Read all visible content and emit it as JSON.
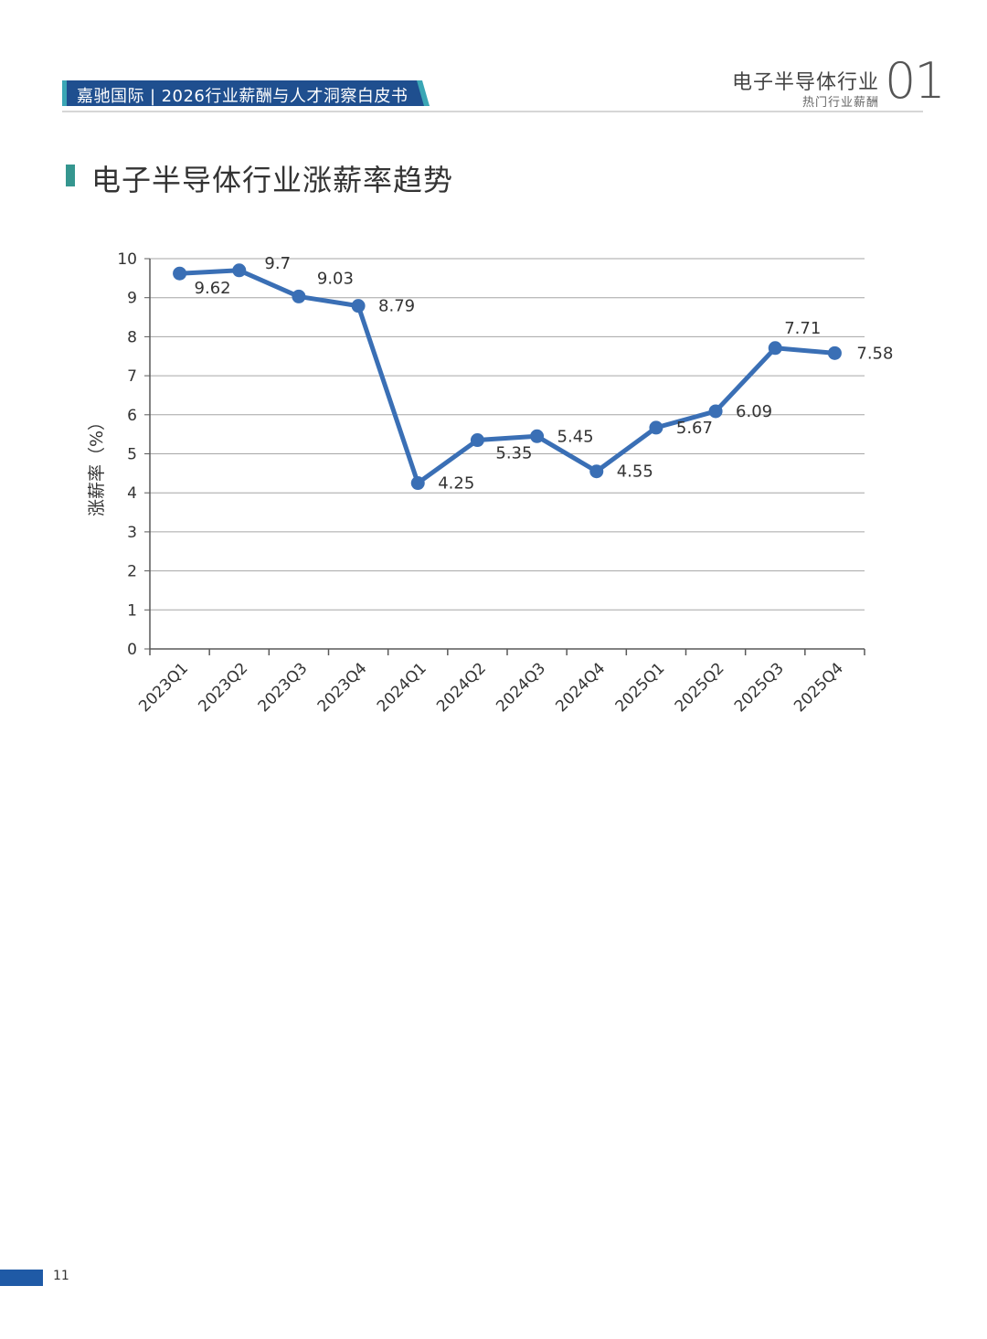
{
  "header": {
    "brand": "嘉驰国际",
    "report": "2026行业薪酬与人才洞察白皮书",
    "section_title": "电子半导体行业",
    "section_subtitle": "热门行业薪酬",
    "section_number": "01"
  },
  "page": {
    "heading": "电子半导体行业涨薪率趋势",
    "page_number": "11"
  },
  "colors": {
    "line": "#3a6fb5",
    "banner": "#1f4f8f",
    "banner_accent": "#3aa6b5",
    "section_bar": "#35968f"
  },
  "chart_data": {
    "type": "line",
    "title": "",
    "xlabel": "",
    "ylabel": "涨薪率（%）",
    "ylim": [
      0,
      10
    ],
    "yticks": [
      0,
      1,
      2,
      3,
      4,
      5,
      6,
      7,
      8,
      9,
      10
    ],
    "grid": true,
    "categories": [
      "2023Q1",
      "2023Q2",
      "2023Q3",
      "2023Q4",
      "2024Q1",
      "2024Q2",
      "2024Q3",
      "2024Q4",
      "2025Q1",
      "2025Q2",
      "2025Q3",
      "2025Q4"
    ],
    "series": [
      {
        "name": "涨薪率",
        "values": [
          9.62,
          9.7,
          9.03,
          8.79,
          4.25,
          5.35,
          5.45,
          4.55,
          5.67,
          6.09,
          7.71,
          7.58
        ],
        "labels": [
          "9.62",
          "9.7",
          "9.03",
          "8.79",
          "4.25",
          "5.35",
          "5.45",
          "4.55",
          "5.67",
          "6.09",
          "7.71",
          "7.58"
        ]
      }
    ]
  }
}
